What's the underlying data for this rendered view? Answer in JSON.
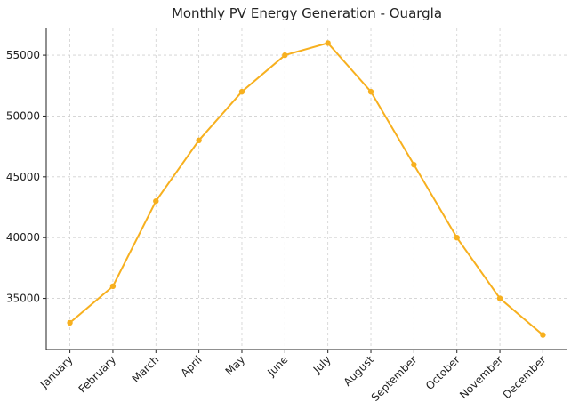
{
  "chart_data": {
    "type": "line",
    "title": "Monthly PV Energy Generation - Ouargla",
    "categories": [
      "January",
      "February",
      "March",
      "April",
      "May",
      "June",
      "July",
      "August",
      "September",
      "October",
      "November",
      "December"
    ],
    "series": [
      {
        "name": "PV Energy Generation",
        "color": "#f7b01f",
        "values": [
          33000,
          36000,
          43000,
          48000,
          52000,
          55000,
          56000,
          52000,
          46000,
          40000,
          35000,
          32000
        ]
      }
    ],
    "ylim": [
      30800,
      57200
    ],
    "yticks": [
      35000,
      40000,
      45000,
      50000,
      55000
    ],
    "grid": true
  }
}
